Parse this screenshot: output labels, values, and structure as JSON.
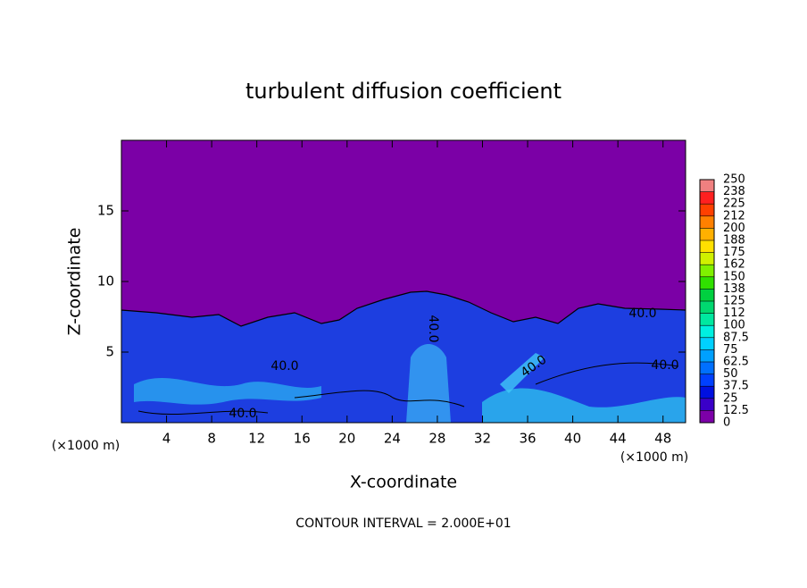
{
  "chart_data": {
    "type": "heatmap",
    "title": "turbulent diffusion coefficient",
    "xlabel": "X-coordinate",
    "ylabel": "Z-coordinate",
    "axis_unit": "(×1000 m)",
    "footnote": "CONTOUR INTERVAL = 2.000E+01",
    "xlim": [
      0,
      50
    ],
    "xticks": [
      4,
      8,
      12,
      16,
      20,
      24,
      28,
      32,
      36,
      40,
      44,
      48
    ],
    "ylim": [
      0,
      20
    ],
    "yticks": [
      5,
      10,
      15
    ],
    "background_color": "#7b00a6",
    "contour_labels": [
      "40.0",
      "40.0",
      "40.0",
      "40.0",
      "40.0",
      "40.0"
    ],
    "colorbar": {
      "ticks": [
        0,
        12.5,
        25,
        37.5,
        50,
        62.5,
        75,
        87.5,
        100,
        {
          "value": 112.5,
          "label": "112"
        },
        125,
        {
          "value": 137.5,
          "label": "138"
        },
        150,
        {
          "value": 162.5,
          "label": "162"
        },
        175,
        {
          "value": 187.5,
          "label": "188"
        },
        200,
        {
          "value": 212.5,
          "label": "212"
        },
        225,
        {
          "value": 237.5,
          "label": "238"
        },
        250
      ],
      "colors": [
        "#7c00a8",
        "#3a00c8",
        "#0010e0",
        "#0040ff",
        "#0070ff",
        "#00a0ff",
        "#00d0ff",
        "#00f0e0",
        "#00e8a0",
        "#00d870",
        "#00d040",
        "#30e000",
        "#80f000",
        "#d0f000",
        "#ffe000",
        "#ffb000",
        "#ff8000",
        "#ff4000",
        "#ff2020",
        "#f08080"
      ]
    }
  }
}
